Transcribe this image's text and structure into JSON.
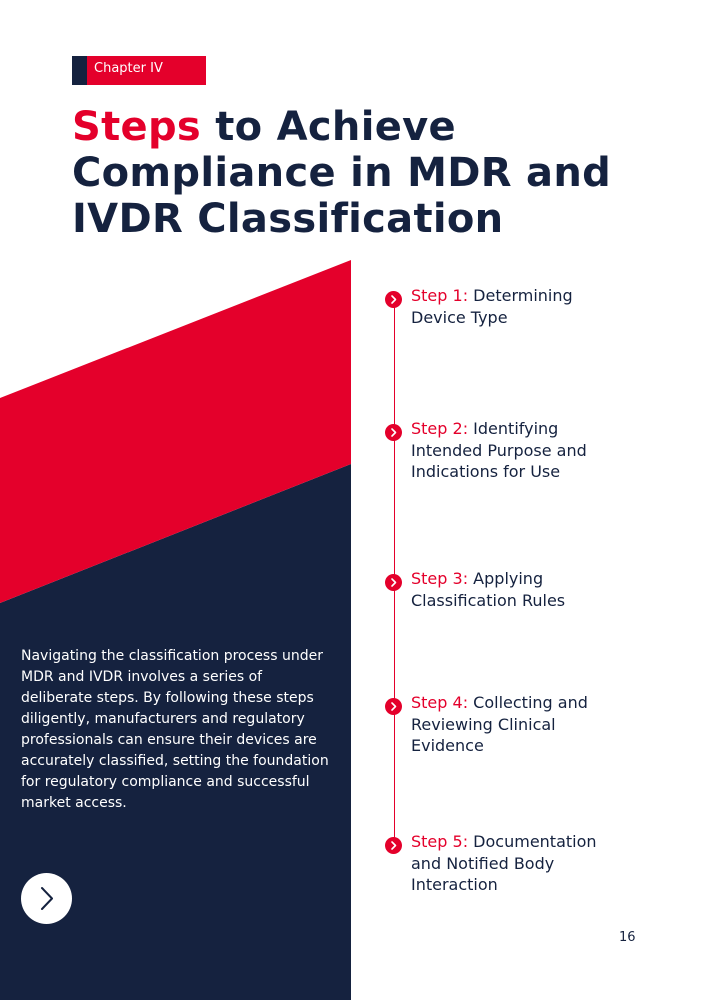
{
  "colors": {
    "accent": "#e4002b",
    "navy": "#15223f",
    "background": "#ffffff"
  },
  "chapter_tag": "Chapter IV",
  "title": {
    "accent": "Steps",
    "rest": " to Achieve Compliance in MDR and IVDR Classification"
  },
  "intro_text": "Navigating the classification process under MDR and IVDR involves a series of deliberate steps. By following these steps diligently, manufacturers and regulatory professionals can ensure their devices are accurately classified, setting the foundation for regulatory compliance and successful market access.",
  "steps": [
    {
      "label": "Step 1:",
      "text": " Determining Device Type",
      "icon": "chevron-right-icon"
    },
    {
      "label": "Step 2:",
      "text": " Identifying Intended Purpose and Indications for Use",
      "icon": "chevron-right-icon"
    },
    {
      "label": "Step 3:",
      "text": " Applying Classification Rules",
      "icon": "chevron-right-icon"
    },
    {
      "label": "Step 4:",
      "text": " Collecting and Reviewing Clinical Evidence",
      "icon": "chevron-right-icon"
    },
    {
      "label": "Step 5:",
      "text": " Documentation and Notified Body Interaction",
      "icon": "chevron-right-icon"
    }
  ],
  "next_button_icon": "chevron-right-icon",
  "page_number": "16"
}
